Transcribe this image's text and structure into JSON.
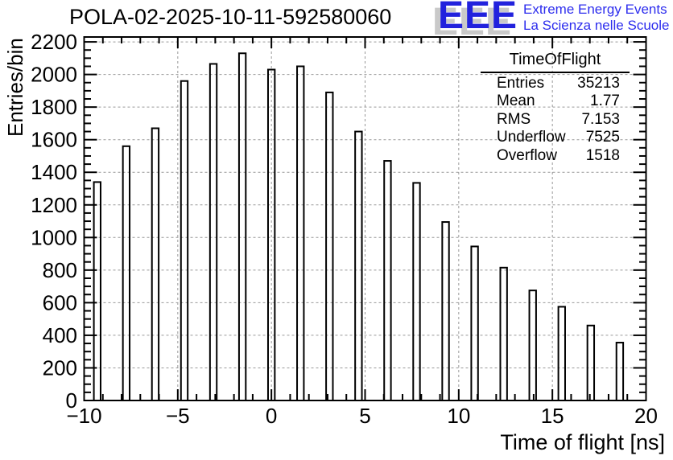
{
  "header": {
    "title": "POLA-02-2025-10-11-592580060",
    "logo": {
      "letters": "EEE",
      "line1": "Extreme Energy Events",
      "line2": "La Scienza nelle Scuole",
      "letters_color": "#2222dd",
      "shadow_color": "#c9c9c9",
      "text_color": "#2d2dee"
    }
  },
  "stats_box": {
    "title": "TimeOfFlight",
    "rows": [
      {
        "label": "Entries",
        "value": "35213"
      },
      {
        "label": "Mean",
        "value": "1.77"
      },
      {
        "label": "RMS",
        "value": "7.153"
      },
      {
        "label": "Underflow",
        "value": "7525"
      },
      {
        "label": "Overflow",
        "value": "1518"
      }
    ]
  },
  "chart_data": {
    "type": "bar",
    "title": "POLA-02-2025-10-11-592580060",
    "xlabel": "Time of flight [ns]",
    "ylabel": "Entries/bin",
    "xlim": [
      -10,
      20
    ],
    "ylim": [
      0,
      2230
    ],
    "grid": true,
    "legend": "none",
    "x_major_ticks": [
      -10,
      -5,
      0,
      5,
      10,
      15,
      20
    ],
    "x_tick_labels": [
      "−10",
      "−5",
      "0",
      "5",
      "10",
      "15",
      "20"
    ],
    "x_minor_step": 1,
    "y_major_values": [
      0,
      200,
      400,
      600,
      800,
      1000,
      1200,
      1400,
      1600,
      1800,
      2000,
      2200
    ],
    "y_tick_labels": [
      "0",
      "200",
      "400",
      "600",
      "800",
      "1000",
      "1200",
      "1400",
      "1600",
      "1800",
      "2000",
      "2200"
    ],
    "y_minor_step": 50,
    "bar_width_ns": 0.36,
    "x": [
      -9.3,
      -7.75,
      -6.2,
      -4.65,
      -3.1,
      -1.55,
      0.0,
      1.55,
      3.1,
      4.65,
      6.2,
      7.75,
      9.3,
      10.85,
      12.4,
      13.95,
      15.5,
      17.05,
      18.6
    ],
    "values": [
      1340,
      1560,
      1670,
      1960,
      2065,
      2130,
      2030,
      2050,
      1890,
      1650,
      1470,
      1335,
      1095,
      945,
      815,
      675,
      575,
      460,
      355
    ],
    "colors": {
      "bar_stroke": "#000000",
      "bar_fill": "none",
      "grid": "#999999",
      "axis": "#000000"
    }
  }
}
